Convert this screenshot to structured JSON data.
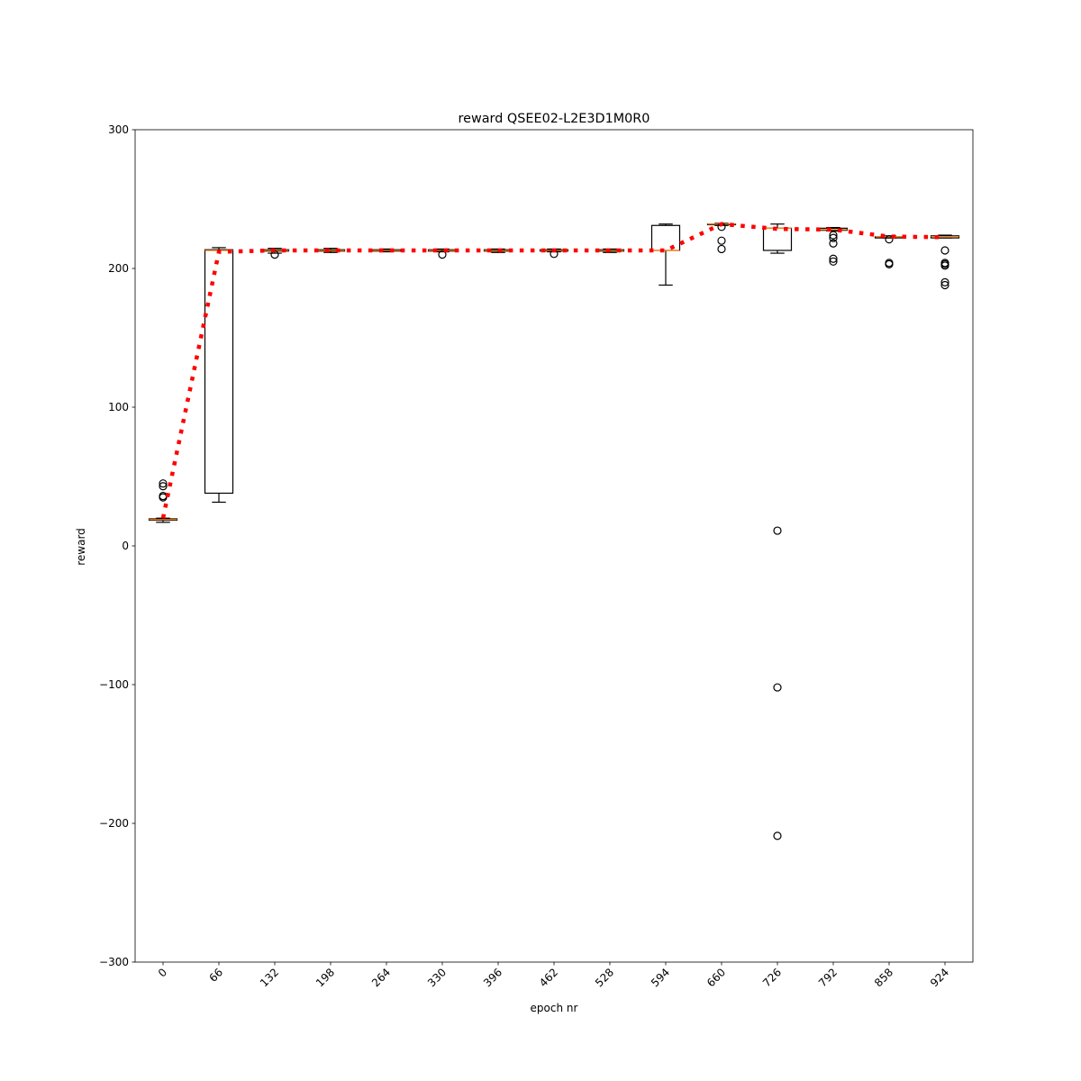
{
  "chart_data": {
    "type": "box",
    "title": "reward QSEE02-L2E3D1M0R0",
    "xlabel": "epoch nr",
    "ylabel": "reward",
    "categories": [
      "0",
      "66",
      "132",
      "198",
      "264",
      "330",
      "396",
      "462",
      "528",
      "594",
      "660",
      "726",
      "792",
      "858",
      "924"
    ],
    "whislo": [
      17,
      31.5,
      211,
      211.5,
      212,
      212,
      211.5,
      212,
      211.5,
      188,
      231,
      211,
      227,
      222,
      222
    ],
    "q1": [
      18.5,
      38,
      212.5,
      212.5,
      212.5,
      212.5,
      212.5,
      212.5,
      212.5,
      213,
      231.5,
      213,
      227.5,
      222,
      222
    ],
    "median": [
      19,
      213,
      213,
      213,
      213,
      213,
      213,
      213,
      213,
      213,
      232,
      229,
      228,
      223,
      223
    ],
    "q3": [
      19.5,
      213.5,
      213.5,
      213.5,
      213.5,
      213.5,
      213.5,
      213.5,
      213.5,
      231,
      232,
      229,
      229,
      223,
      223.5
    ],
    "whishi": [
      20,
      215,
      214.5,
      214.5,
      214,
      214,
      214,
      214,
      214,
      232,
      232.5,
      232,
      229.5,
      223.5,
      224
    ],
    "fliers": [
      [
        45,
        43,
        36,
        35
      ],
      [],
      [
        210
      ],
      [],
      [],
      [
        210
      ],
      [],
      [
        210.5
      ],
      [],
      [],
      [
        230,
        220,
        214
      ],
      [
        11,
        -102,
        -209
      ],
      [
        224,
        222,
        218,
        207,
        205
      ],
      [
        221,
        204,
        203
      ],
      [
        213,
        204,
        203,
        202,
        190,
        188
      ]
    ],
    "means": [
      20,
      212,
      213,
      213,
      213,
      213,
      213,
      213,
      213,
      213,
      232,
      228.5,
      228,
      223,
      222.5
    ],
    "ylim": [
      -300,
      300
    ],
    "yticks": [
      {
        "value": -300,
        "label": "−300"
      },
      {
        "value": -200,
        "label": "−200"
      },
      {
        "value": -100,
        "label": "−100"
      },
      0,
      100,
      200,
      300
    ],
    "box_color": "#000000",
    "median_color": "#ff7f0e",
    "mean_color": "#ff0000"
  }
}
